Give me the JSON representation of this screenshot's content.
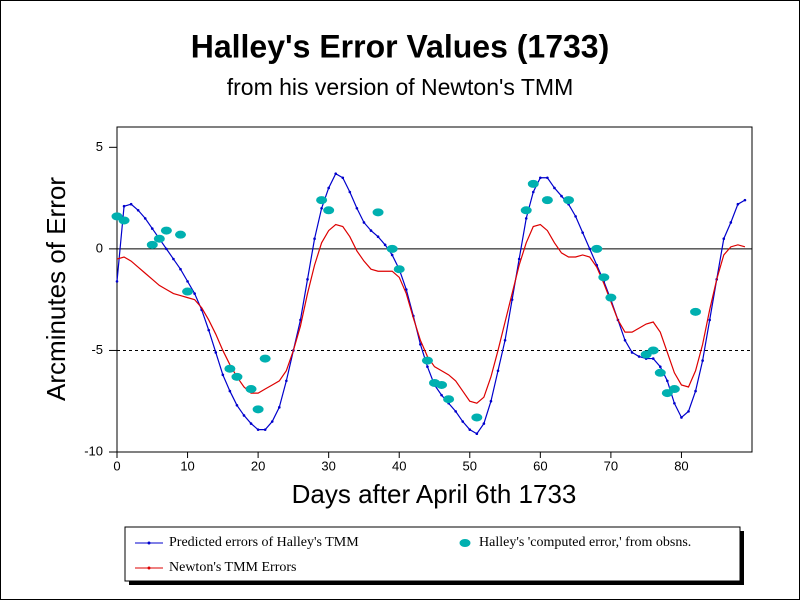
{
  "chart_data": {
    "type": "line",
    "title": "Halley's Error Values (1733)",
    "subtitle": "from his version of Newton's TMM",
    "x_label": "Days after April 6th 1733",
    "y_label": "Arcminutes of Error",
    "xlim": [
      0,
      90
    ],
    "ylim": [
      -10,
      6
    ],
    "xticks": [
      0,
      10,
      20,
      30,
      40,
      50,
      60,
      70,
      80
    ],
    "yticks": [
      -10,
      -5,
      0,
      5
    ],
    "hlines": [
      {
        "value": 0,
        "style": "solid"
      },
      {
        "value": -5,
        "style": "dashed"
      }
    ],
    "x": [
      0,
      1,
      2,
      3,
      4,
      5,
      6,
      7,
      8,
      9,
      10,
      11,
      12,
      13,
      14,
      15,
      16,
      17,
      18,
      19,
      20,
      21,
      22,
      23,
      24,
      25,
      26,
      27,
      28,
      29,
      30,
      31,
      32,
      33,
      34,
      35,
      36,
      37,
      38,
      39,
      40,
      41,
      42,
      43,
      44,
      45,
      46,
      47,
      48,
      49,
      50,
      51,
      52,
      53,
      54,
      55,
      56,
      57,
      58,
      59,
      60,
      61,
      62,
      63,
      64,
      65,
      66,
      67,
      68,
      69,
      70,
      71,
      72,
      73,
      74,
      75,
      76,
      77,
      78,
      79,
      80,
      81,
      82,
      83,
      84,
      85,
      86,
      87,
      88,
      89
    ],
    "series": [
      {
        "name": "Predicted errors of Halley's TMM",
        "color": "#0000cc",
        "style": "line-dots",
        "values": [
          -1.6,
          2.1,
          2.2,
          1.9,
          1.5,
          1.0,
          0.5,
          0,
          -0.5,
          -1,
          -1.6,
          -2.2,
          -3,
          -4,
          -5.1,
          -6.2,
          -7,
          -7.7,
          -8.2,
          -8.6,
          -8.9,
          -8.9,
          -8.5,
          -7.8,
          -6.5,
          -5,
          -3.5,
          -1.5,
          0.5,
          2,
          3,
          3.7,
          3.5,
          2.8,
          2,
          1.3,
          0.9,
          0.6,
          0.2,
          -0.3,
          -1,
          -2,
          -3.3,
          -4.7,
          -5.8,
          -6.7,
          -7.2,
          -7.6,
          -8,
          -8.5,
          -8.9,
          -9.1,
          -8.6,
          -7.5,
          -6,
          -4.5,
          -2.5,
          -0.5,
          1.5,
          2.8,
          3.5,
          3.5,
          3,
          2.6,
          2.2,
          1.6,
          0.8,
          0,
          -0.8,
          -1.6,
          -2.5,
          -3.5,
          -4.5,
          -5.1,
          -5.3,
          -5.4,
          -5.4,
          -5.8,
          -6.5,
          -7.6,
          -8.3,
          -8,
          -7,
          -5.5,
          -3.5,
          -1.5,
          0.5,
          1.3,
          2.2,
          2.4
        ]
      },
      {
        "name": "Newton's TMM Errors",
        "color": "#dd0000",
        "style": "line",
        "values": [
          -0.5,
          -0.4,
          -0.6,
          -0.9,
          -1.2,
          -1.5,
          -1.8,
          -2,
          -2.2,
          -2.3,
          -2.4,
          -2.5,
          -2.9,
          -3.5,
          -4.2,
          -5,
          -5.7,
          -6.3,
          -6.8,
          -7.1,
          -7.1,
          -6.9,
          -6.7,
          -6.5,
          -6,
          -5,
          -3.8,
          -2.2,
          -0.8,
          0.3,
          0.9,
          1.2,
          1.1,
          0.6,
          -0.1,
          -0.6,
          -1,
          -1.1,
          -1.1,
          -1.1,
          -1.4,
          -2.2,
          -3.4,
          -4.5,
          -5.3,
          -5.8,
          -6,
          -6.2,
          -6.5,
          -7,
          -7.5,
          -7.6,
          -7.3,
          -6.3,
          -5,
          -3.6,
          -2.2,
          -0.8,
          0.3,
          1.1,
          1.2,
          0.9,
          0.3,
          -0.2,
          -0.4,
          -0.4,
          -0.3,
          -0.4,
          -0.9,
          -1.7,
          -2.6,
          -3.5,
          -4.1,
          -4.1,
          -3.9,
          -3.7,
          -3.6,
          -4.1,
          -5.1,
          -6.1,
          -6.7,
          -6.8,
          -6,
          -4.7,
          -3,
          -1.5,
          -0.3,
          0.1,
          0.2,
          0.1
        ]
      },
      {
        "name": "Halley's 'computed error,' from obsns.",
        "color": "#00b0b0",
        "style": "markers",
        "x": [
          0,
          1,
          5,
          6,
          7,
          9,
          10,
          16,
          17,
          19,
          20,
          21,
          29,
          30,
          37,
          39,
          40,
          44,
          45,
          46,
          47,
          51,
          58,
          59,
          61,
          64,
          68,
          69,
          70,
          75,
          76,
          77,
          78,
          79,
          82
        ],
        "values": [
          1.6,
          1.4,
          0.2,
          0.5,
          0.9,
          0.7,
          -2.1,
          -5.9,
          -6.3,
          -6.9,
          -7.9,
          -5.4,
          2.4,
          1.9,
          1.8,
          0,
          -1.0,
          -5.5,
          -6.6,
          -6.7,
          -7.4,
          -8.3,
          1.9,
          3.2,
          2.4,
          2.4,
          0,
          -1.4,
          -2.4,
          -5.2,
          -5.0,
          -6.1,
          -7.1,
          -6.9,
          -3.1
        ]
      }
    ]
  }
}
